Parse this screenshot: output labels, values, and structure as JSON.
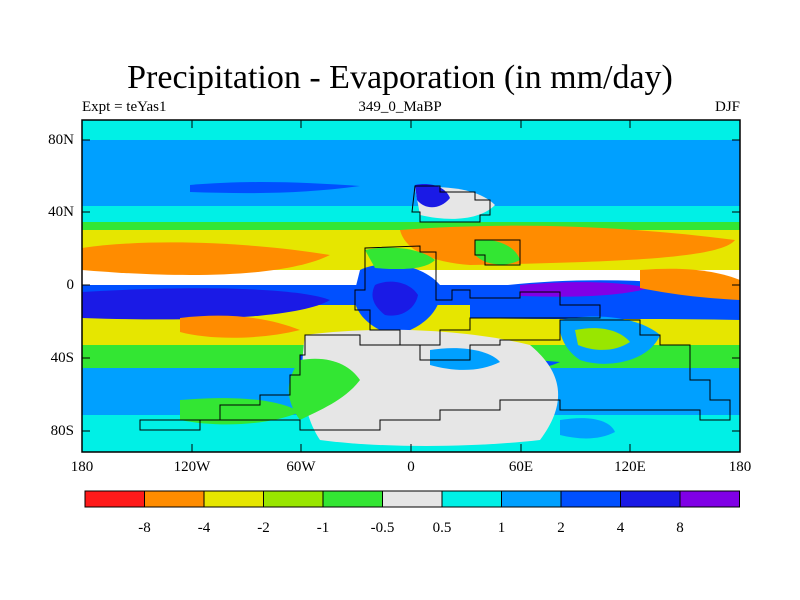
{
  "title": "Precipitation - Evaporation (in mm/day)",
  "subtitle": {
    "left": "Expt = teYas1",
    "center": "349_0_MaBP",
    "right": "DJF"
  },
  "map": {
    "lat_ticks": [
      "80N",
      "40N",
      "0",
      "40S",
      "80S"
    ],
    "lon_ticks": [
      "180",
      "120W",
      "60W",
      "0",
      "60E",
      "120E",
      "180"
    ],
    "colors": {
      "very_dry": "#ff1a1a",
      "dry": "#ff8c00",
      "moderately_dry": "#e6e600",
      "slightly_dry": "#99e600",
      "near_neutral_dry": "#33e633",
      "neutral": "#e6e6e6",
      "near_neutral_wet": "#00f0e6",
      "slightly_wet": "#00a0ff",
      "wet": "#0050ff",
      "very_wet": "#1a1ae6",
      "extreme_wet": "#8000e6",
      "coastline": "#000000"
    }
  },
  "colorbar": {
    "labels": [
      "-8",
      "-4",
      "-2",
      "-1",
      "-0.5",
      "0.5",
      "1",
      "2",
      "4",
      "8"
    ],
    "colors": [
      "#ff1a1a",
      "#ff8c00",
      "#e6e600",
      "#99e600",
      "#33e633",
      "#e6e6e6",
      "#00f0e6",
      "#00a0ff",
      "#0050ff",
      "#1a1ae6",
      "#8000e6"
    ]
  }
}
